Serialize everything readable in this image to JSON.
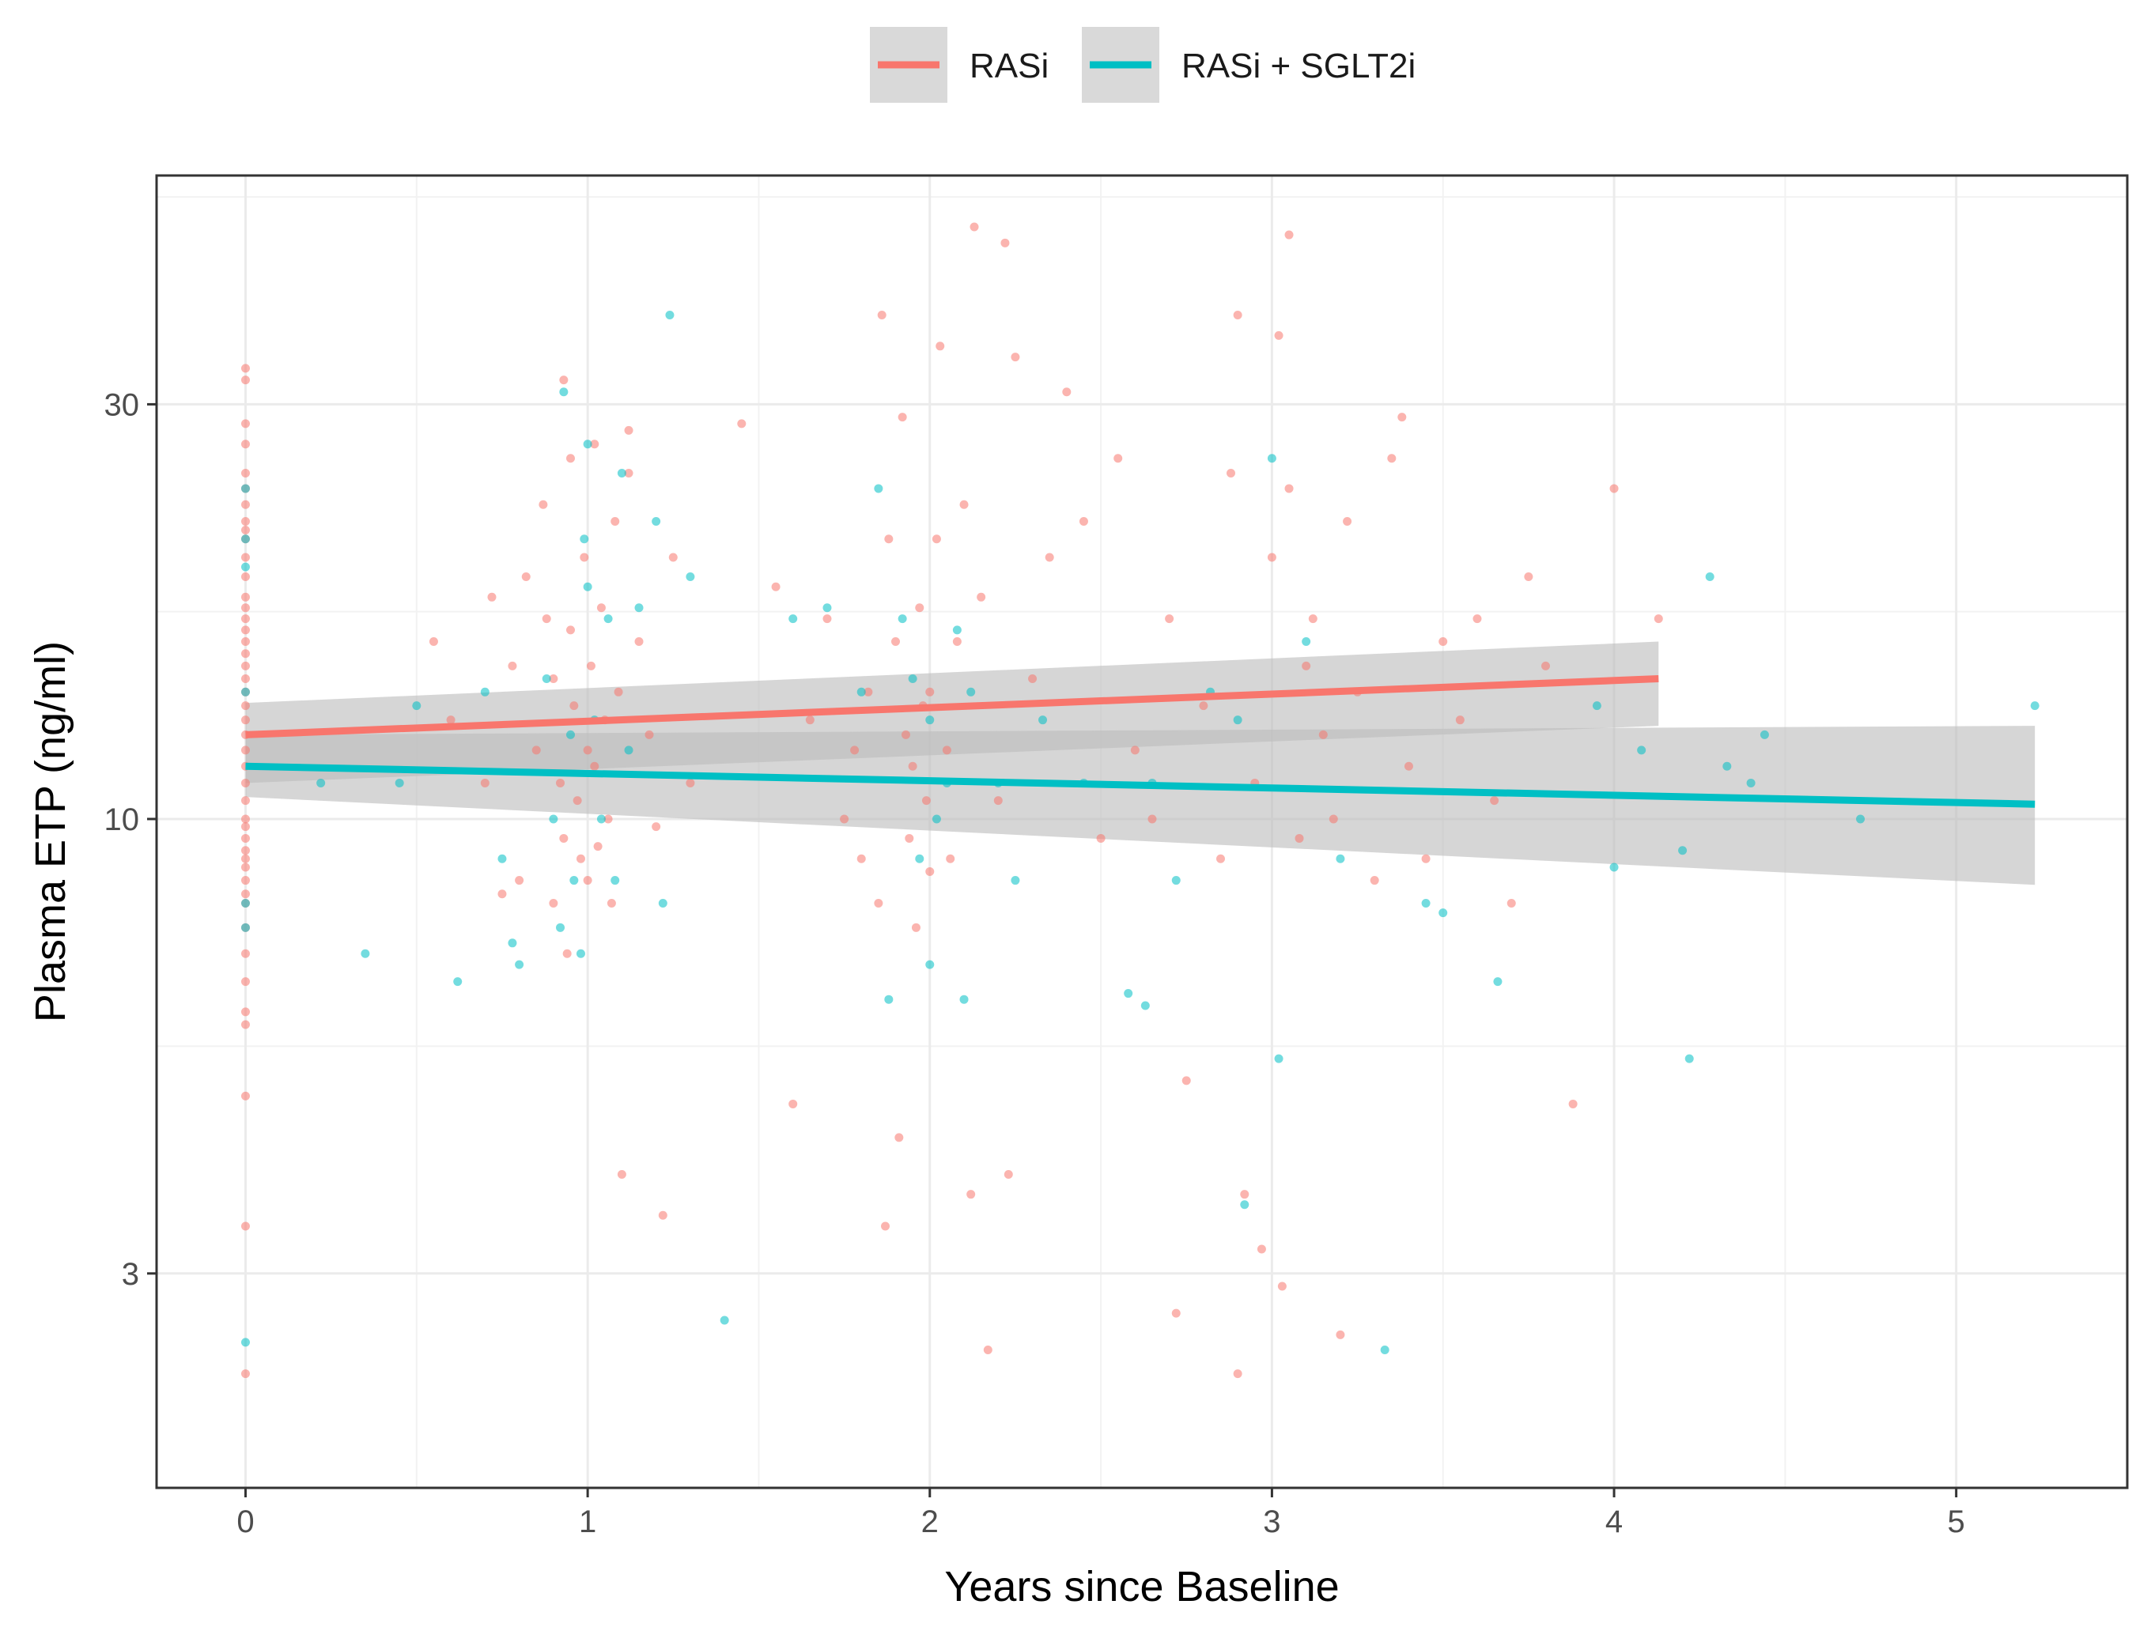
{
  "chart_data": {
    "type": "scatter",
    "xlabel": "Years since Baseline",
    "ylabel": "Plasma ETP (ng/ml)",
    "y_scale": "log10",
    "xlim": [
      -0.26,
      5.5
    ],
    "ylim": [
      1.7,
      55
    ],
    "x_ticks": [
      0,
      1,
      2,
      3,
      4,
      5
    ],
    "x_tick_labels": [
      "0",
      "1",
      "2",
      "3",
      "4",
      "5"
    ],
    "y_ticks": [
      3,
      10,
      30
    ],
    "y_tick_labels": [
      "3",
      "10",
      "30"
    ],
    "grid": true,
    "legend_position": "top",
    "series": [
      {
        "name": "RASi",
        "color": "#F8766D",
        "trend": {
          "x": [
            0,
            4.13
          ],
          "y": [
            12.5,
            14.5
          ]
        },
        "band": {
          "x": [
            0,
            4.13
          ],
          "lower": [
            11.0,
            12.8
          ],
          "upper": [
            13.6,
            16.0
          ]
        },
        "points": [
          [
            0,
            33
          ],
          [
            0,
            32
          ],
          [
            0,
            28.5
          ],
          [
            0,
            27
          ],
          [
            0,
            25
          ],
          [
            0,
            24
          ],
          [
            0,
            23
          ],
          [
            0,
            22
          ],
          [
            0,
            21.5
          ],
          [
            0,
            21
          ],
          [
            0,
            20
          ],
          [
            0,
            19
          ],
          [
            0,
            18
          ],
          [
            0,
            17.5
          ],
          [
            0,
            17
          ],
          [
            0,
            16.5
          ],
          [
            0,
            16
          ],
          [
            0,
            15.5
          ],
          [
            0,
            15
          ],
          [
            0,
            14.5
          ],
          [
            0,
            14
          ],
          [
            0,
            13.5
          ],
          [
            0,
            13
          ],
          [
            0,
            12.5
          ],
          [
            0,
            12
          ],
          [
            0,
            11.5
          ],
          [
            0,
            11
          ],
          [
            0,
            10.5
          ],
          [
            0,
            10
          ],
          [
            0,
            9.8
          ],
          [
            0,
            9.5
          ],
          [
            0,
            9.2
          ],
          [
            0,
            9
          ],
          [
            0,
            8.8
          ],
          [
            0,
            8.5
          ],
          [
            0,
            8.2
          ],
          [
            0,
            8
          ],
          [
            0,
            7.5
          ],
          [
            0,
            7
          ],
          [
            0,
            6.5
          ],
          [
            0,
            6
          ],
          [
            0,
            5.8
          ],
          [
            0,
            4.8
          ],
          [
            0,
            3.4
          ],
          [
            0,
            2.3
          ],
          [
            0.55,
            16
          ],
          [
            0.6,
            13
          ],
          [
            0.7,
            11
          ],
          [
            0.72,
            18
          ],
          [
            0.75,
            8.2
          ],
          [
            0.78,
            15
          ],
          [
            0.8,
            8.5
          ],
          [
            0.82,
            19
          ],
          [
            0.85,
            12
          ],
          [
            0.88,
            17
          ],
          [
            0.9,
            14.5
          ],
          [
            0.9,
            8
          ],
          [
            0.92,
            11
          ],
          [
            0.93,
            9.5
          ],
          [
            0.94,
            7
          ],
          [
            0.95,
            26
          ],
          [
            0.95,
            16.5
          ],
          [
            0.96,
            13.5
          ],
          [
            0.97,
            10.5
          ],
          [
            0.98,
            9
          ],
          [
            0.99,
            20
          ],
          [
            1.0,
            12
          ],
          [
            1.0,
            8.5
          ],
          [
            1.01,
            15
          ],
          [
            1.02,
            11.5
          ],
          [
            1.03,
            9.3
          ],
          [
            1.04,
            17.5
          ],
          [
            1.05,
            13
          ],
          [
            1.06,
            10
          ],
          [
            1.07,
            8
          ],
          [
            1.08,
            22
          ],
          [
            1.09,
            14
          ],
          [
            1.1,
            3.9
          ],
          [
            1.12,
            25
          ],
          [
            1.15,
            16
          ],
          [
            1.18,
            12.5
          ],
          [
            1.2,
            9.8
          ],
          [
            1.22,
            3.5
          ],
          [
            1.25,
            20
          ],
          [
            1.3,
            11
          ],
          [
            0.93,
            32
          ],
          [
            1.02,
            27
          ],
          [
            1.12,
            28
          ],
          [
            0.87,
            23
          ],
          [
            1.45,
            28.5
          ],
          [
            1.55,
            18.5
          ],
          [
            1.6,
            4.7
          ],
          [
            1.65,
            13
          ],
          [
            1.7,
            17
          ],
          [
            1.75,
            10
          ],
          [
            1.78,
            12
          ],
          [
            1.8,
            9
          ],
          [
            1.82,
            14
          ],
          [
            1.85,
            8
          ],
          [
            1.86,
            38
          ],
          [
            1.87,
            3.4
          ],
          [
            1.88,
            21
          ],
          [
            1.9,
            16
          ],
          [
            1.91,
            4.3
          ],
          [
            1.92,
            29
          ],
          [
            1.93,
            12.5
          ],
          [
            1.94,
            9.5
          ],
          [
            1.95,
            11.5
          ],
          [
            1.96,
            7.5
          ],
          [
            1.97,
            17.5
          ],
          [
            1.98,
            13.5
          ],
          [
            1.99,
            10.5
          ],
          [
            2.0,
            8.7
          ],
          [
            2.0,
            14
          ],
          [
            2.02,
            21
          ],
          [
            2.03,
            35
          ],
          [
            2.05,
            12
          ],
          [
            2.06,
            9
          ],
          [
            2.08,
            16
          ],
          [
            2.1,
            23
          ],
          [
            2.12,
            3.7
          ],
          [
            2.13,
            48
          ],
          [
            2.15,
            18
          ],
          [
            2.17,
            2.45
          ],
          [
            2.2,
            10.5
          ],
          [
            2.22,
            46
          ],
          [
            2.23,
            3.9
          ],
          [
            2.25,
            34
          ],
          [
            2.3,
            14.5
          ],
          [
            2.35,
            20
          ],
          [
            2.4,
            31
          ],
          [
            2.45,
            22
          ],
          [
            2.5,
            9.5
          ],
          [
            2.55,
            26
          ],
          [
            2.6,
            12
          ],
          [
            2.65,
            10
          ],
          [
            2.7,
            17
          ],
          [
            2.72,
            2.7
          ],
          [
            2.75,
            5
          ],
          [
            2.8,
            13.5
          ],
          [
            2.85,
            9
          ],
          [
            2.9,
            2.3
          ],
          [
            2.9,
            38
          ],
          [
            2.92,
            3.7
          ],
          [
            2.95,
            11
          ],
          [
            2.97,
            3.2
          ],
          [
            3.0,
            20
          ],
          [
            3.02,
            36
          ],
          [
            3.03,
            2.9
          ],
          [
            3.05,
            47
          ],
          [
            3.08,
            9.5
          ],
          [
            3.1,
            15
          ],
          [
            3.12,
            17
          ],
          [
            3.15,
            12.5
          ],
          [
            3.18,
            10
          ],
          [
            3.2,
            2.55
          ],
          [
            3.22,
            22
          ],
          [
            3.25,
            14
          ],
          [
            3.3,
            8.5
          ],
          [
            3.35,
            26
          ],
          [
            3.38,
            29
          ],
          [
            3.4,
            11.5
          ],
          [
            3.45,
            9
          ],
          [
            3.5,
            16
          ],
          [
            3.55,
            13
          ],
          [
            3.6,
            17
          ],
          [
            3.65,
            10.5
          ],
          [
            3.7,
            8
          ],
          [
            3.75,
            19
          ],
          [
            3.8,
            15
          ],
          [
            3.88,
            4.7
          ],
          [
            4.0,
            24
          ],
          [
            4.13,
            17
          ],
          [
            2.88,
            25
          ],
          [
            3.05,
            24
          ]
        ]
      },
      {
        "name": "RASi + SGLT2i",
        "color": "#00BFC4",
        "trend": {
          "x": [
            0,
            5.23
          ],
          "y": [
            11.5,
            10.4
          ]
        },
        "band": {
          "x": [
            0,
            5.23
          ],
          "lower": [
            10.6,
            8.4
          ],
          "upper": [
            12.5,
            12.8
          ]
        },
        "points": [
          [
            0,
            24
          ],
          [
            0,
            21
          ],
          [
            0,
            19.5
          ],
          [
            0,
            14
          ],
          [
            0,
            8
          ],
          [
            0,
            7.5
          ],
          [
            0,
            2.5
          ],
          [
            0.22,
            11
          ],
          [
            0.35,
            7
          ],
          [
            0.45,
            11
          ],
          [
            0.5,
            13.5
          ],
          [
            0.62,
            6.5
          ],
          [
            0.7,
            14
          ],
          [
            0.75,
            9
          ],
          [
            0.78,
            7.2
          ],
          [
            0.8,
            6.8
          ],
          [
            0.88,
            14.5
          ],
          [
            0.9,
            10
          ],
          [
            0.92,
            7.5
          ],
          [
            0.93,
            31
          ],
          [
            0.95,
            12.5
          ],
          [
            0.96,
            8.5
          ],
          [
            0.98,
            7
          ],
          [
            0.99,
            21
          ],
          [
            1.0,
            27
          ],
          [
            1.0,
            18.5
          ],
          [
            1.02,
            13
          ],
          [
            1.04,
            10
          ],
          [
            1.06,
            17
          ],
          [
            1.08,
            8.5
          ],
          [
            1.1,
            25
          ],
          [
            1.12,
            12
          ],
          [
            1.15,
            17.5
          ],
          [
            1.2,
            22
          ],
          [
            1.22,
            8
          ],
          [
            1.24,
            38
          ],
          [
            1.3,
            19
          ],
          [
            1.4,
            2.65
          ],
          [
            1.6,
            17
          ],
          [
            1.7,
            17.5
          ],
          [
            1.8,
            14
          ],
          [
            1.85,
            24
          ],
          [
            1.88,
            6.2
          ],
          [
            1.92,
            17
          ],
          [
            1.95,
            14.5
          ],
          [
            1.97,
            9
          ],
          [
            2.0,
            6.8
          ],
          [
            2.0,
            13
          ],
          [
            2.02,
            10
          ],
          [
            2.05,
            11
          ],
          [
            2.08,
            16.5
          ],
          [
            2.1,
            6.2
          ],
          [
            2.12,
            14
          ],
          [
            2.2,
            11
          ],
          [
            2.25,
            8.5
          ],
          [
            2.33,
            13
          ],
          [
            2.45,
            11
          ],
          [
            2.58,
            6.3
          ],
          [
            2.63,
            6.1
          ],
          [
            2.65,
            11
          ],
          [
            2.72,
            8.5
          ],
          [
            2.82,
            14
          ],
          [
            2.9,
            13
          ],
          [
            2.92,
            3.6
          ],
          [
            3.0,
            26
          ],
          [
            3.02,
            5.3
          ],
          [
            3.1,
            16
          ],
          [
            3.2,
            9
          ],
          [
            3.33,
            2.45
          ],
          [
            3.45,
            8
          ],
          [
            3.5,
            7.8
          ],
          [
            3.66,
            6.5
          ],
          [
            3.95,
            13.5
          ],
          [
            4.0,
            8.8
          ],
          [
            4.08,
            12
          ],
          [
            4.2,
            9.2
          ],
          [
            4.22,
            5.3
          ],
          [
            4.28,
            19
          ],
          [
            4.33,
            11.5
          ],
          [
            4.4,
            11
          ],
          [
            4.44,
            12.5
          ],
          [
            4.72,
            10
          ],
          [
            5.23,
            13.5
          ]
        ]
      }
    ]
  }
}
